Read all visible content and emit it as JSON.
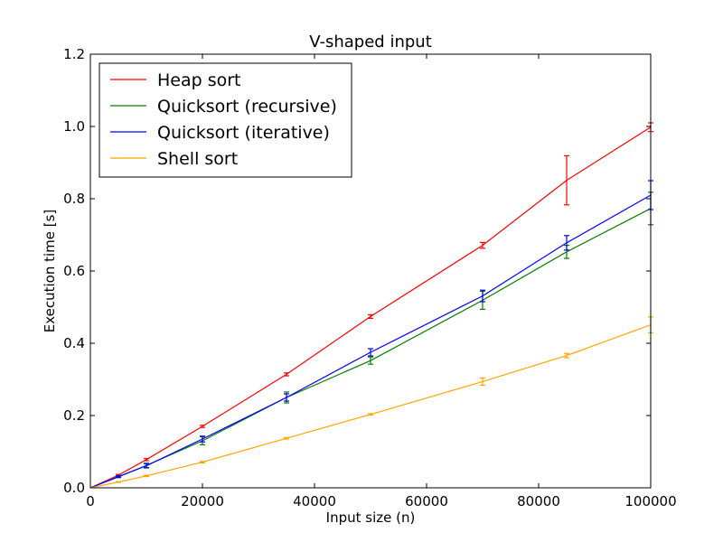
{
  "chart_data": {
    "type": "line",
    "title": "V-shaped input",
    "xlabel": "Input size (n)",
    "ylabel": "Execution time [s]",
    "xlim": [
      0,
      100000
    ],
    "ylim": [
      0,
      1.2
    ],
    "x_ticks": [
      0,
      20000,
      40000,
      60000,
      80000,
      100000
    ],
    "y_ticks": [
      0.0,
      0.2,
      0.4,
      0.6,
      0.8,
      1.0,
      1.2
    ],
    "x_tick_labels": [
      "0",
      "20000",
      "40000",
      "60000",
      "80000",
      "100000"
    ],
    "y_tick_labels": [
      "0.0",
      "0.2",
      "0.4",
      "0.6",
      "0.8",
      "1.0",
      "1.2"
    ],
    "grid": false,
    "legend_position": "top-left",
    "x": [
      0,
      5000,
      10000,
      20000,
      35000,
      50000,
      70000,
      85000,
      100000
    ],
    "series": [
      {
        "name": "Heap sort",
        "color": "#ff0000",
        "values": [
          0,
          0.035,
          0.078,
          0.17,
          0.314,
          0.474,
          0.671,
          0.851,
          0.998
        ],
        "errors": [
          0,
          0.002,
          0.003,
          0.003,
          0.004,
          0.005,
          0.008,
          0.068,
          0.012
        ]
      },
      {
        "name": "Quicksort (recursive)",
        "color": "#008000",
        "values": [
          0,
          0.03,
          0.062,
          0.13,
          0.25,
          0.352,
          0.519,
          0.653,
          0.773
        ],
        "errors": [
          0,
          0.002,
          0.006,
          0.011,
          0.015,
          0.01,
          0.025,
          0.018,
          0.045
        ]
      },
      {
        "name": "Quicksort (iterative)",
        "color": "#0000ff",
        "values": [
          0,
          0.031,
          0.061,
          0.135,
          0.25,
          0.375,
          0.531,
          0.678,
          0.81
        ],
        "errors": [
          0,
          0.002,
          0.006,
          0.008,
          0.01,
          0.01,
          0.016,
          0.02,
          0.04
        ]
      },
      {
        "name": "Shell sort",
        "color": "#ffa500",
        "values": [
          0,
          0.016,
          0.033,
          0.071,
          0.137,
          0.203,
          0.294,
          0.366,
          0.451
        ],
        "errors": [
          0,
          0.001,
          0.002,
          0.002,
          0.002,
          0.002,
          0.01,
          0.006,
          0.022
        ]
      }
    ]
  }
}
